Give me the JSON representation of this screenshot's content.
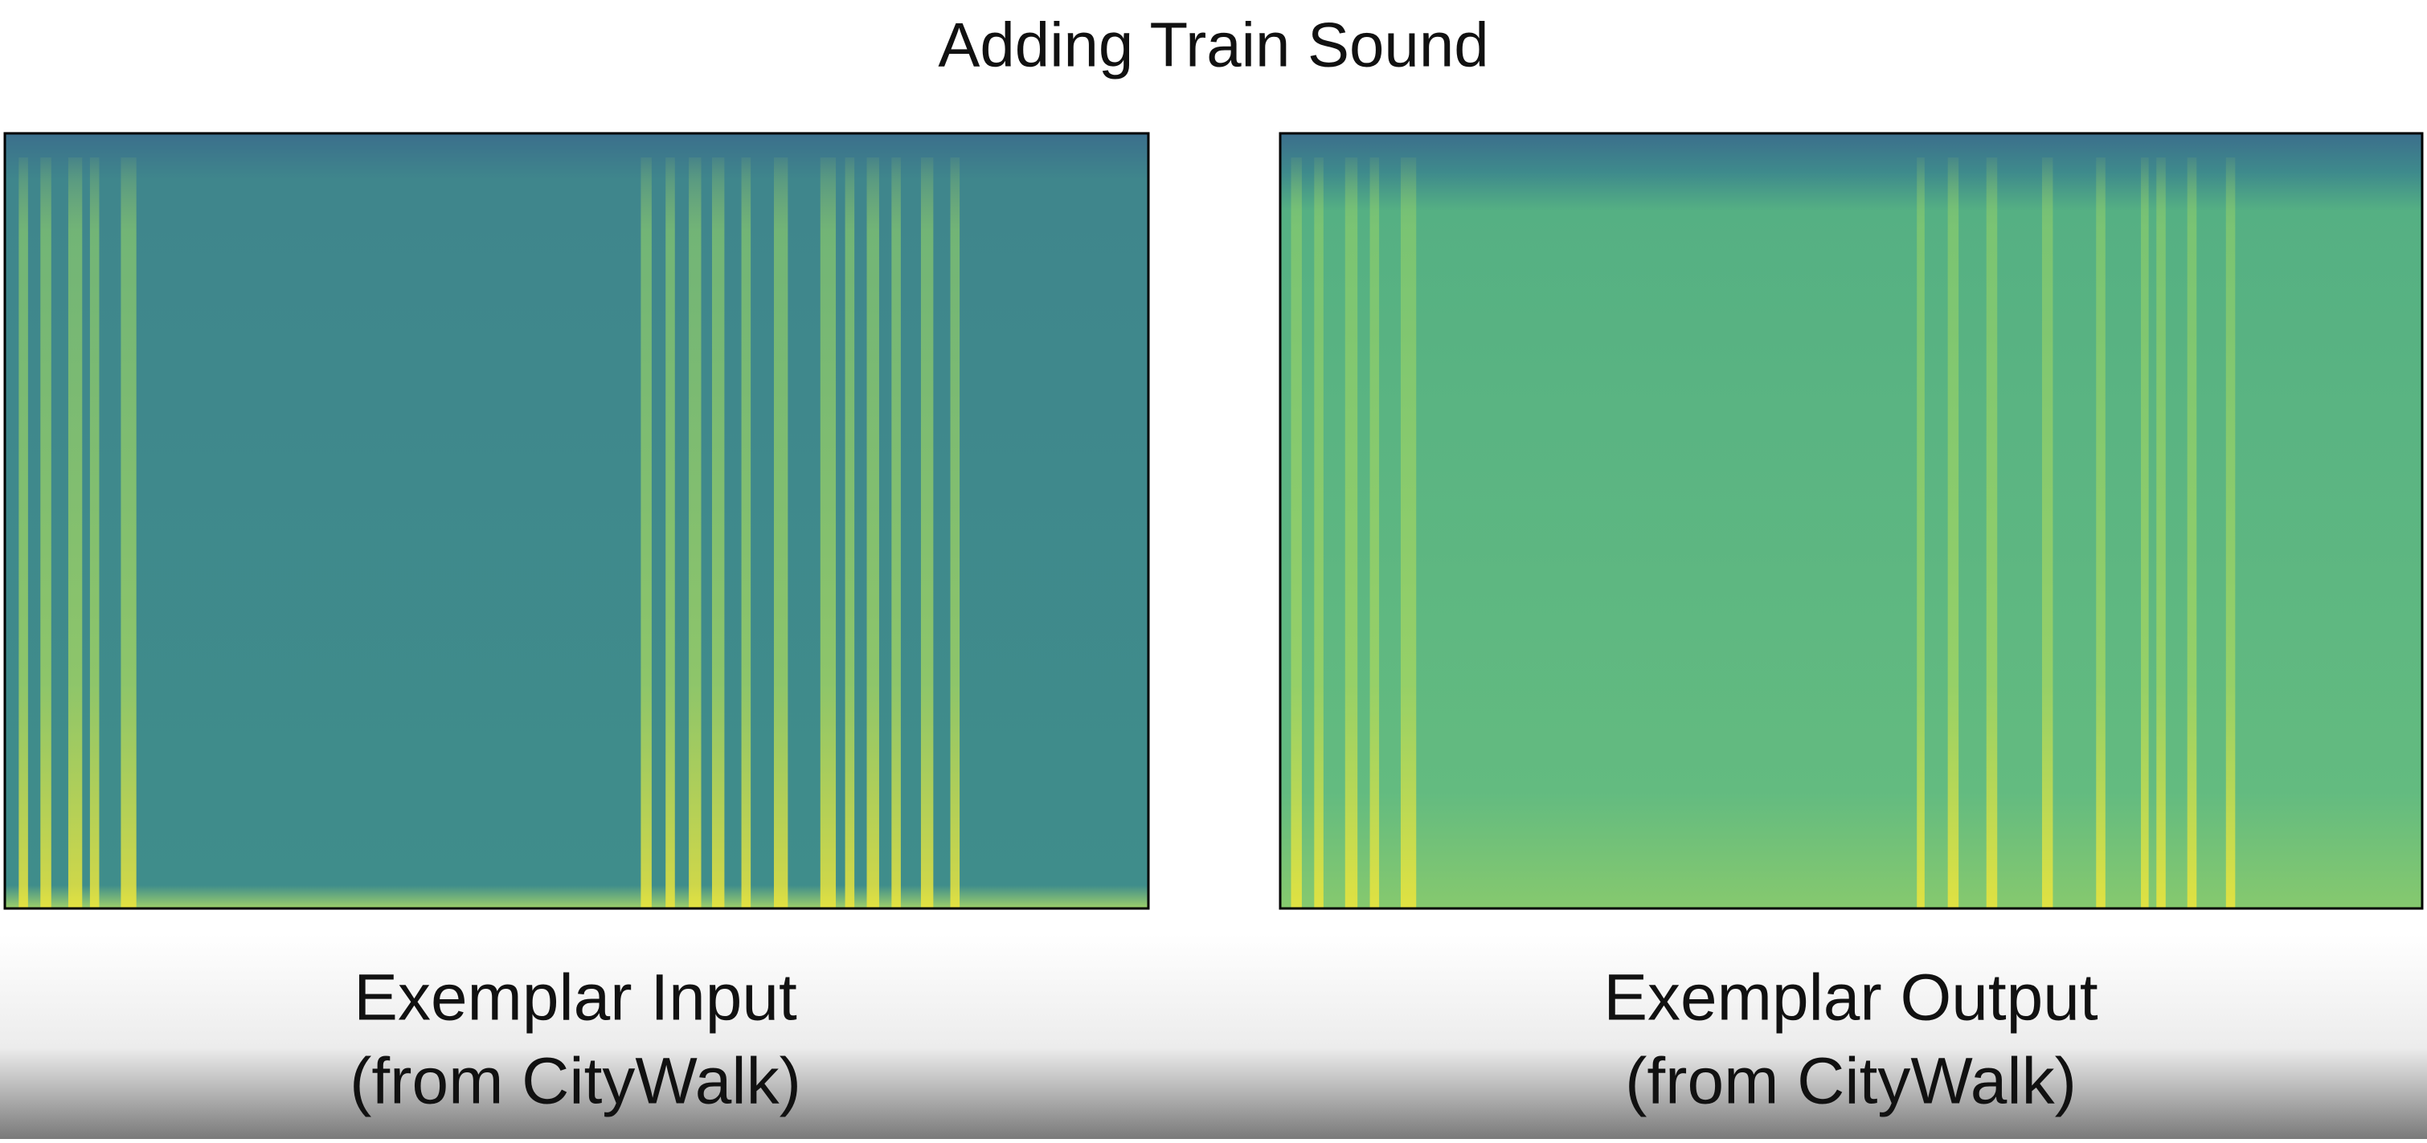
{
  "title": "Adding Train Sound",
  "panels": [
    {
      "caption": [
        "Exemplar Input",
        "(from CityWalk)"
      ]
    },
    {
      "caption": [
        "Exemplar Output",
        "(from CityWalk)"
      ]
    }
  ]
}
